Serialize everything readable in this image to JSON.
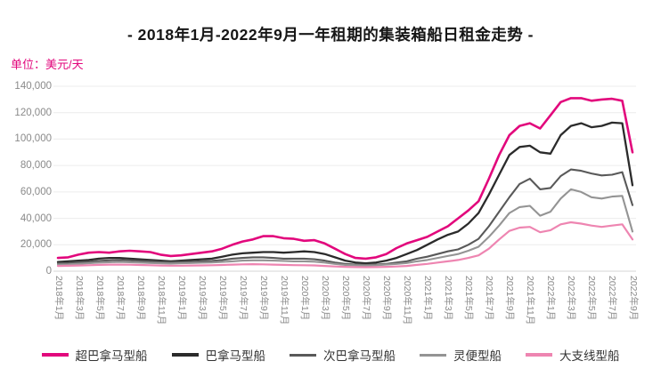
{
  "title": "- 2018年1月-2022年9月一年租期的集装箱船日租金走势 -",
  "unit_label": "单位：美元/天",
  "colors": {
    "accent": "#e2077c",
    "title_text": "#161616",
    "axis_text": "#8a8a8a",
    "grid": "#ececec",
    "zero_line": "#d6d6d6",
    "legend_text": "#333333"
  },
  "chart_data": {
    "type": "line",
    "title": "- 2018年1月-2022年9月一年租期的集装箱船日租金走势 -",
    "ylabel": "单位：美元/天",
    "ylim": [
      0,
      140000
    ],
    "grid": "horizontal-only",
    "legend_position": "bottom",
    "yticks": [
      {
        "value": 0,
        "label": "0"
      },
      {
        "value": 20000,
        "label": "20,000"
      },
      {
        "value": 40000,
        "label": "40,000"
      },
      {
        "value": 60000,
        "label": "60,000"
      },
      {
        "value": 80000,
        "label": "80,000"
      },
      {
        "value": 100000,
        "label": "100,000"
      },
      {
        "value": 120000,
        "label": "120,000"
      },
      {
        "value": 140000,
        "label": "140,000"
      }
    ],
    "x_tick_labels": [
      "2018年1月",
      "2018年3月",
      "2018年5月",
      "2018年7月",
      "2018年9月",
      "2018年11月",
      "2019年1月",
      "2019年3月",
      "2019年5月",
      "2019年7月",
      "2019年9月",
      "2019年11月",
      "2020年1月",
      "2020年3月",
      "2020年5月",
      "2020年7月",
      "2020年9月",
      "2020年11月",
      "2021年1月",
      "2021年3月",
      "2021年5月",
      "2021年7月",
      "2021年9月",
      "2021年11月",
      "2022年1月",
      "2022年3月",
      "2022年5月",
      "2022年7月",
      "2022年9月"
    ],
    "x_months_per_point": 1,
    "xtick_every": 2,
    "series": [
      {
        "key": "super-panamax",
        "name": "超巴拿马型船",
        "color": "#e2077c",
        "width": 2.6,
        "swatch_h": 4,
        "values": [
          10000,
          10500,
          12500,
          14000,
          14500,
          14000,
          15000,
          15500,
          15000,
          14500,
          12500,
          11500,
          12000,
          13000,
          14000,
          15000,
          17000,
          20000,
          22500,
          24000,
          26500,
          26500,
          25000,
          24500,
          23000,
          23500,
          21000,
          17000,
          13000,
          10000,
          9500,
          10500,
          13000,
          17500,
          21000,
          23500,
          26000,
          30000,
          34000,
          40000,
          46000,
          53000,
          70000,
          88000,
          103000,
          110000,
          112000,
          108000,
          118000,
          128000,
          131000,
          131000,
          129000,
          130000,
          130500,
          129000,
          90000
        ]
      },
      {
        "key": "panamax",
        "name": "巴拿马型船",
        "color": "#2b2b2b",
        "width": 2.3,
        "swatch_h": 4,
        "values": [
          7000,
          7500,
          8000,
          8500,
          9500,
          10000,
          10000,
          9500,
          9000,
          8500,
          8000,
          7500,
          8000,
          8500,
          9000,
          9500,
          11000,
          12500,
          13500,
          14000,
          14500,
          14500,
          14000,
          14500,
          15000,
          14500,
          13000,
          10500,
          8000,
          6500,
          6000,
          6500,
          8000,
          10000,
          13000,
          16000,
          20000,
          24000,
          27500,
          30000,
          36000,
          44000,
          58000,
          73000,
          88000,
          94000,
          95000,
          90000,
          89000,
          103000,
          110000,
          112000,
          109000,
          110000,
          112500,
          112000,
          65000
        ]
      },
      {
        "key": "sub-panamax",
        "name": "次巴拿马型船",
        "color": "#595959",
        "width": 2.1,
        "swatch_h": 3,
        "values": [
          6000,
          6200,
          6800,
          7200,
          7800,
          8200,
          8500,
          8200,
          7800,
          7500,
          7000,
          6800,
          7000,
          7200,
          7500,
          7800,
          8500,
          9500,
          10000,
          10500,
          10500,
          10000,
          9500,
          9500,
          9500,
          9000,
          8000,
          6500,
          5500,
          5000,
          4800,
          5000,
          5500,
          6500,
          7500,
          9500,
          11000,
          13000,
          15000,
          16500,
          20000,
          24500,
          34000,
          45000,
          56000,
          66000,
          70000,
          62000,
          63000,
          72000,
          77000,
          76000,
          74000,
          72500,
          73000,
          75000,
          50000
        ]
      },
      {
        "key": "handysize",
        "name": "灵便型船",
        "color": "#949494",
        "width": 2.1,
        "swatch_h": 3,
        "values": [
          5000,
          5200,
          5600,
          6000,
          6500,
          6800,
          7000,
          6800,
          6500,
          6200,
          6000,
          5800,
          6000,
          6200,
          6400,
          6600,
          7000,
          7500,
          8000,
          8200,
          8200,
          8000,
          7800,
          7500,
          7500,
          7200,
          6500,
          5500,
          4800,
          4500,
          4300,
          4500,
          5000,
          5500,
          6200,
          7500,
          8500,
          10000,
          11500,
          13000,
          15500,
          18500,
          26000,
          34500,
          44000,
          48500,
          49500,
          42000,
          45000,
          55000,
          62000,
          60000,
          56000,
          55000,
          56500,
          57000,
          30000
        ]
      },
      {
        "key": "feeder",
        "name": "大支线型船",
        "color": "#ee85b1",
        "width": 2.2,
        "swatch_h": 4,
        "values": [
          4000,
          4100,
          4300,
          4500,
          4800,
          5000,
          5000,
          4900,
          4700,
          4500,
          4300,
          4200,
          4200,
          4300,
          4400,
          4500,
          4700,
          5000,
          5200,
          5300,
          5200,
          5000,
          4800,
          4600,
          4500,
          4400,
          4000,
          3600,
          3300,
          3100,
          3000,
          3100,
          3300,
          3600,
          4000,
          4800,
          5500,
          6500,
          7500,
          8500,
          10000,
          12000,
          17000,
          24000,
          30500,
          33000,
          33500,
          29500,
          31000,
          35500,
          37000,
          36000,
          34500,
          33500,
          34500,
          35500,
          24000
        ]
      }
    ]
  }
}
